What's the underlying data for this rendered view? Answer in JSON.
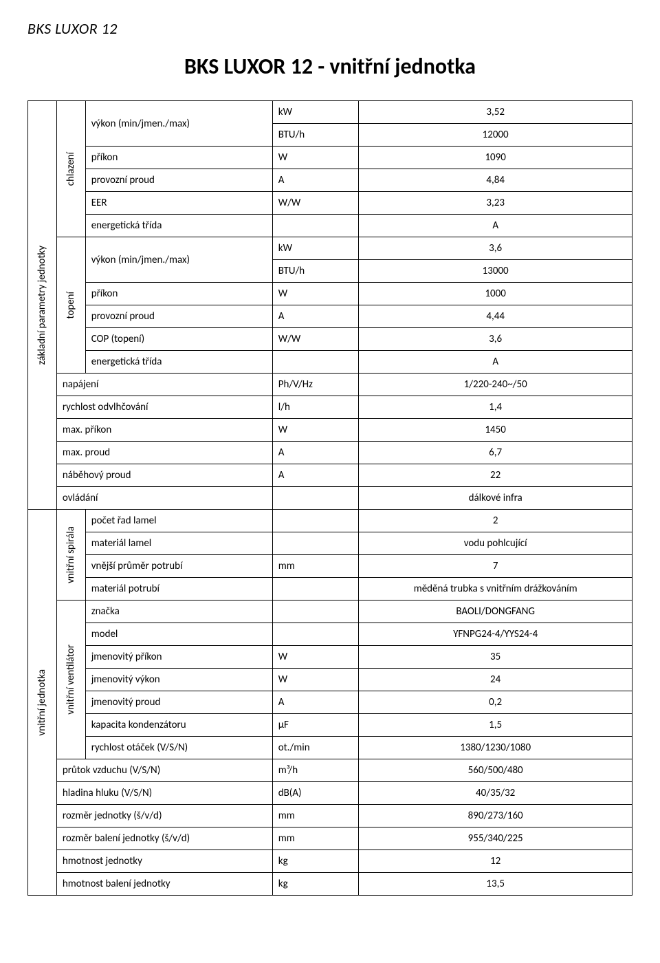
{
  "header_small": "BKS LUXOR 12",
  "title": "BKS LUXOR 12 - vnitřní jednotka",
  "rot_zakladni": "základní parametry jednotky",
  "rot_chlazeni": "chlazení",
  "rot_topeni": "topení",
  "rot_vnitrni_jednotka": "vnitřní jednotka",
  "rot_vnitrni_spirala": "vnitřní spirála",
  "rot_vnitrni_ventilator": "vnitřní ventilátor",
  "lbl_vykon": "výkon (min/jmen./max)",
  "lbl_prikon": "příkon",
  "lbl_provozni_proud": "provozní proud",
  "lbl_eer": "EER",
  "lbl_energ_trida": "energetická třída",
  "lbl_cop": "COP (topení)",
  "lbl_napajeni": "napájení",
  "lbl_rychlost_odvlh": "rychlost odvlhčování",
  "lbl_max_prikon": "max. příkon",
  "lbl_max_proud": "max. proud",
  "lbl_nabehovy_proud": "náběhový proud",
  "lbl_ovladani": "ovládání",
  "lbl_pocet_rad": "počet řad lamel",
  "lbl_material_lamel": "materiál lamel",
  "lbl_vnejsi_prumer": "vnější průměr potrubí",
  "lbl_material_potrubi": "materiál potrubí",
  "lbl_znacka": "značka",
  "lbl_model": "model",
  "lbl_jm_prikon": "jmenovitý příkon",
  "lbl_jm_vykon": "jmenovitý výkon",
  "lbl_jm_proud": "jmenovitý proud",
  "lbl_kapacita_kond": "kapacita kondenzátoru",
  "lbl_rychl_otacek": "rychlost otáček (V/S/N)",
  "lbl_prutok_vzduchu": "průtok vzduchu (V/S/N)",
  "lbl_hladina_hluku": "hladina hluku (V/S/N)",
  "lbl_rozmer_jednotky": "rozměr jednotky (š/v/d)",
  "lbl_rozmer_baleni": "rozměr balení jednotky (š/v/d)",
  "lbl_hmotnost_jednotky": "hmotnost jednotky",
  "lbl_hmotnost_baleni": "hmotnost balení jednotky",
  "u_kW": "kW",
  "u_BTUh": "BTU/h",
  "u_W": "W",
  "u_A": "A",
  "u_WW": "W/W",
  "u_PhVHz": "Ph/V/Hz",
  "u_lh": "l/h",
  "u_mm": "mm",
  "u_uF": "µF",
  "u_otmin": "ot./min",
  "u_m3h": "m³/h",
  "u_dBA": "dB(A)",
  "u_kg": "kg",
  "v_chl_kw": "3,52",
  "v_chl_btu": "12000",
  "v_chl_prikon": "1090",
  "v_chl_proud": "4,84",
  "v_chl_eer": "3,23",
  "v_chl_trida": "A",
  "v_top_kw": "3,6",
  "v_top_btu": "13000",
  "v_top_prikon": "1000",
  "v_top_proud": "4,44",
  "v_top_cop": "3,6",
  "v_top_trida": "A",
  "v_napajeni": "1/220-240~/50",
  "v_odvlh": "1,4",
  "v_max_prikon": "1450",
  "v_max_proud": "6,7",
  "v_nabeh": "22",
  "v_ovladani": "dálkové infra",
  "v_pocet_rad": "2",
  "v_mat_lamel": "vodu pohlcující",
  "v_vnejsi_prumer": "7",
  "v_mat_potrubi": "měděná trubka s vnitřním drážkováním",
  "v_znacka": "BAOLI/DONGFANG",
  "v_model": "YFNPG24-4/YYS24-4",
  "v_jm_prikon": "35",
  "v_jm_vykon": "24",
  "v_jm_proud": "0,2",
  "v_kap_kond": "1,5",
  "v_otacky": "1380/1230/1080",
  "v_prutok": "560/500/480",
  "v_hluk": "40/35/32",
  "v_rozmer": "890/273/160",
  "v_rozmer_bal": "955/340/225",
  "v_hmotnost": "12",
  "v_hmotnost_bal": "13,5"
}
